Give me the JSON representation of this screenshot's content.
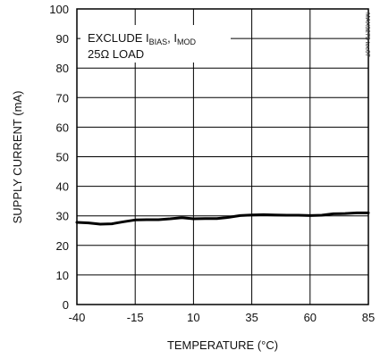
{
  "chart_data": {
    "type": "line",
    "xlabel": "TEMPERATURE (°C)",
    "ylabel": "SUPPLY CURRENT (mA)",
    "xlim": [
      -40,
      85
    ],
    "ylim": [
      0,
      100
    ],
    "x_ticks": [
      -40,
      -15,
      10,
      35,
      60,
      85
    ],
    "x_tick_labels": [
      "-40",
      "-15",
      "10",
      "35",
      "60",
      "85"
    ],
    "y_ticks": [
      0,
      10,
      20,
      30,
      40,
      50,
      60,
      70,
      80,
      90,
      100
    ],
    "y_tick_labels": [
      "0",
      "10",
      "20",
      "30",
      "40",
      "50",
      "60",
      "70",
      "80",
      "90",
      "100"
    ],
    "grid": true,
    "annotations": {
      "line1_prefix": "EXCLUDE I",
      "line1_sub1": "BIAS",
      "line1_sep": ", I",
      "line1_sub2": "MOD",
      "line2": "25Ω LOAD"
    },
    "figure_id": "MAX3273 toc07",
    "series": [
      {
        "color": "#000000",
        "x": [
          -40,
          -35,
          -30,
          -25,
          -20,
          -15,
          -10,
          -5,
          0,
          5,
          10,
          15,
          20,
          25,
          30,
          35,
          40,
          45,
          50,
          55,
          60,
          65,
          70,
          75,
          80,
          85
        ],
        "y": [
          27.8,
          27.6,
          27.2,
          27.3,
          28.0,
          28.6,
          28.7,
          28.7,
          29.0,
          29.4,
          29.0,
          29.1,
          29.1,
          29.5,
          30.1,
          30.3,
          30.4,
          30.3,
          30.2,
          30.2,
          30.1,
          30.2,
          30.7,
          30.8,
          31.0,
          31.0
        ]
      }
    ]
  }
}
